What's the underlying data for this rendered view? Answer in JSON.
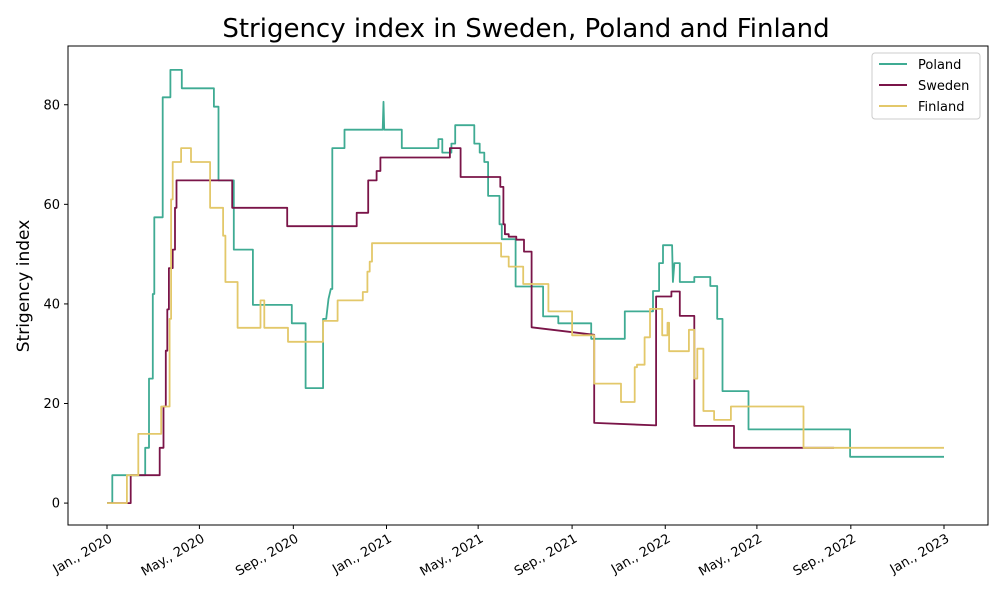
{
  "chart_data": {
    "type": "line",
    "title": "Strigency index in Sweden, Poland and Finland",
    "xlabel": "",
    "ylabel": "Strigency index",
    "xlim": [
      "2020-01-01",
      "2023-01-01"
    ],
    "ylim": [
      -4.4,
      91.8
    ],
    "x_ticks": [
      "2020-01-01",
      "2020-05-01",
      "2020-09-01",
      "2021-01-01",
      "2021-05-01",
      "2021-09-01",
      "2022-01-01",
      "2022-05-01",
      "2022-09-01",
      "2023-01-01"
    ],
    "x_tick_labels": [
      "Jan., 2020",
      "May., 2020",
      "Sep., 2020",
      "Jan., 2021",
      "May., 2021",
      "Sep., 2021",
      "Jan., 2022",
      "May., 2022",
      "Sep., 2022",
      "Jan., 2023"
    ],
    "y_ticks": [
      0,
      20,
      40,
      60,
      80
    ],
    "y_tick_labels": [
      "0",
      "20",
      "40",
      "60",
      "80"
    ],
    "grid": false,
    "legend_position": "top-right",
    "series": [
      {
        "name": "Poland",
        "color": "#3fab93",
        "points": [
          [
            "2020-01-01",
            0
          ],
          [
            "2020-01-08",
            0
          ],
          [
            "2020-01-08",
            5.6
          ],
          [
            "2020-02-20",
            5.6
          ],
          [
            "2020-02-20",
            11.1
          ],
          [
            "2020-02-25",
            11.1
          ],
          [
            "2020-02-25",
            25
          ],
          [
            "2020-03-01",
            25
          ],
          [
            "2020-03-01",
            42
          ],
          [
            "2020-03-03",
            42
          ],
          [
            "2020-03-03",
            57.4
          ],
          [
            "2020-03-14",
            57.4
          ],
          [
            "2020-03-14",
            81.5
          ],
          [
            "2020-03-24",
            81.5
          ],
          [
            "2020-03-24",
            87
          ],
          [
            "2020-04-08",
            87
          ],
          [
            "2020-04-08",
            83.3
          ],
          [
            "2020-05-20",
            83.3
          ],
          [
            "2020-05-20",
            79.6
          ],
          [
            "2020-05-26",
            79.6
          ],
          [
            "2020-05-26",
            64.8
          ],
          [
            "2020-06-15",
            64.8
          ],
          [
            "2020-06-15",
            50.9
          ],
          [
            "2020-07-10",
            50.9
          ],
          [
            "2020-07-10",
            39.8
          ],
          [
            "2020-08-30",
            39.8
          ],
          [
            "2020-08-30",
            36.1
          ],
          [
            "2020-09-17",
            36.1
          ],
          [
            "2020-09-17",
            23.1
          ],
          [
            "2020-10-10",
            23.1
          ],
          [
            "2020-10-10",
            37
          ],
          [
            "2020-10-14",
            37
          ],
          [
            "2020-10-17",
            41
          ],
          [
            "2020-10-20",
            43
          ],
          [
            "2020-10-22",
            43
          ],
          [
            "2020-10-22",
            71.3
          ],
          [
            "2020-11-07",
            71.3
          ],
          [
            "2020-11-07",
            75
          ],
          [
            "2020-12-27",
            75
          ],
          [
            "2020-12-28",
            80.6
          ],
          [
            "2020-12-29",
            75
          ],
          [
            "2021-01-21",
            75
          ],
          [
            "2021-01-21",
            71.3
          ],
          [
            "2021-03-10",
            71.3
          ],
          [
            "2021-03-10",
            73.1
          ],
          [
            "2021-03-15",
            73.1
          ],
          [
            "2021-03-15",
            70.4
          ],
          [
            "2021-03-27",
            70.4
          ],
          [
            "2021-03-27",
            72.2
          ],
          [
            "2021-04-01",
            72.2
          ],
          [
            "2021-04-01",
            75.9
          ],
          [
            "2021-04-26",
            75.9
          ],
          [
            "2021-04-26",
            72.2
          ],
          [
            "2021-05-03",
            72.2
          ],
          [
            "2021-05-03",
            70.4
          ],
          [
            "2021-05-09",
            70.4
          ],
          [
            "2021-05-09",
            68.5
          ],
          [
            "2021-05-14",
            68.5
          ],
          [
            "2021-05-14",
            61.7
          ],
          [
            "2021-05-29",
            61.7
          ],
          [
            "2021-05-29",
            56
          ],
          [
            "2021-06-01",
            56
          ],
          [
            "2021-06-01",
            53
          ],
          [
            "2021-06-19",
            53
          ],
          [
            "2021-06-19",
            43.5
          ],
          [
            "2021-07-25",
            43.5
          ],
          [
            "2021-07-25",
            37.5
          ],
          [
            "2021-08-14",
            37.5
          ],
          [
            "2021-08-14",
            36.1
          ],
          [
            "2021-09-26",
            36.1
          ],
          [
            "2021-09-26",
            33
          ],
          [
            "2021-11-09",
            33
          ],
          [
            "2021-11-09",
            38.5
          ],
          [
            "2021-12-16",
            38.5
          ],
          [
            "2021-12-16",
            42.6
          ],
          [
            "2021-12-24",
            42.6
          ],
          [
            "2021-12-24",
            48.2
          ],
          [
            "2021-12-29",
            48.2
          ],
          [
            "2021-12-29",
            51.8
          ],
          [
            "2022-01-10",
            51.8
          ],
          [
            "2022-01-11",
            44.4
          ],
          [
            "2022-01-13",
            48.2
          ],
          [
            "2022-01-20",
            48.2
          ],
          [
            "2022-01-20",
            44.4
          ],
          [
            "2022-02-08",
            44.4
          ],
          [
            "2022-02-08",
            45.4
          ],
          [
            "2022-03-01",
            45.4
          ],
          [
            "2022-03-01",
            43.6
          ],
          [
            "2022-03-10",
            43.6
          ],
          [
            "2022-03-10",
            37
          ],
          [
            "2022-03-17",
            37
          ],
          [
            "2022-03-17",
            22.5
          ],
          [
            "2022-04-20",
            22.5
          ],
          [
            "2022-04-20",
            14.8
          ],
          [
            "2022-08-31",
            14.8
          ],
          [
            "2022-08-31",
            9.3
          ],
          [
            "2023-01-01",
            9.3
          ]
        ]
      },
      {
        "name": "Sweden",
        "color": "#7a1448",
        "points": [
          [
            "2020-01-01",
            0
          ],
          [
            "2020-02-01",
            0
          ],
          [
            "2020-02-01",
            5.6
          ],
          [
            "2020-03-10",
            5.6
          ],
          [
            "2020-03-10",
            11.1
          ],
          [
            "2020-03-15",
            11.1
          ],
          [
            "2020-03-15",
            19.4
          ],
          [
            "2020-03-18",
            19.4
          ],
          [
            "2020-03-18",
            30.6
          ],
          [
            "2020-03-20",
            30.6
          ],
          [
            "2020-03-20",
            38.9
          ],
          [
            "2020-03-22",
            38.9
          ],
          [
            "2020-03-22",
            47.2
          ],
          [
            "2020-03-27",
            47.2
          ],
          [
            "2020-03-27",
            50.9
          ],
          [
            "2020-03-30",
            50.9
          ],
          [
            "2020-03-30",
            59.3
          ],
          [
            "2020-04-01",
            59.3
          ],
          [
            "2020-04-01",
            64.8
          ],
          [
            "2020-06-13",
            64.8
          ],
          [
            "2020-06-13",
            59.3
          ],
          [
            "2020-08-24",
            59.3
          ],
          [
            "2020-08-24",
            55.6
          ],
          [
            "2020-11-23",
            55.6
          ],
          [
            "2020-11-23",
            58.3
          ],
          [
            "2020-12-08",
            58.3
          ],
          [
            "2020-12-08",
            64.8
          ],
          [
            "2020-12-19",
            64.8
          ],
          [
            "2020-12-19",
            66.7
          ],
          [
            "2020-12-24",
            66.7
          ],
          [
            "2020-12-24",
            69.4
          ],
          [
            "2021-03-25",
            69.4
          ],
          [
            "2021-03-25",
            71.3
          ],
          [
            "2021-04-08",
            71.3
          ],
          [
            "2021-04-08",
            65.5
          ],
          [
            "2021-05-30",
            65.5
          ],
          [
            "2021-05-30",
            63.5
          ],
          [
            "2021-06-03",
            63.5
          ],
          [
            "2021-06-03",
            56
          ],
          [
            "2021-06-05",
            56
          ],
          [
            "2021-06-05",
            54
          ],
          [
            "2021-06-10",
            54
          ],
          [
            "2021-06-10",
            53.5
          ],
          [
            "2021-06-20",
            53.5
          ],
          [
            "2021-06-20",
            52.9
          ],
          [
            "2021-06-30",
            52.9
          ],
          [
            "2021-06-30",
            50.5
          ],
          [
            "2021-07-10",
            50.5
          ],
          [
            "2021-07-10",
            35.3
          ],
          [
            "2021-09-30",
            33.8
          ],
          [
            "2021-09-30",
            16.1
          ],
          [
            "2021-12-20",
            15.6
          ],
          [
            "2021-12-20",
            41.5
          ],
          [
            "2022-01-09",
            41.5
          ],
          [
            "2022-01-09",
            42.5
          ],
          [
            "2022-01-20",
            42.5
          ],
          [
            "2022-01-20",
            37.6
          ],
          [
            "2022-02-08",
            37.6
          ],
          [
            "2022-02-08",
            15.5
          ],
          [
            "2022-04-01",
            15.5
          ],
          [
            "2022-04-01",
            11.1
          ],
          [
            "2022-08-10",
            11.1
          ]
        ]
      },
      {
        "name": "Finland",
        "color": "#e3c86a",
        "points": [
          [
            "2020-01-01",
            0
          ],
          [
            "2020-01-27",
            0
          ],
          [
            "2020-01-27",
            5.6
          ],
          [
            "2020-02-11",
            5.6
          ],
          [
            "2020-02-11",
            13.9
          ],
          [
            "2020-03-12",
            13.9
          ],
          [
            "2020-03-12",
            19.4
          ],
          [
            "2020-03-23",
            19.4
          ],
          [
            "2020-03-23",
            37
          ],
          [
            "2020-03-25",
            37
          ],
          [
            "2020-03-25",
            61
          ],
          [
            "2020-03-27",
            61
          ],
          [
            "2020-03-27",
            68.5
          ],
          [
            "2020-04-07",
            68.5
          ],
          [
            "2020-04-07",
            71.3
          ],
          [
            "2020-04-20",
            71.3
          ],
          [
            "2020-04-20",
            68.5
          ],
          [
            "2020-05-15",
            68.5
          ],
          [
            "2020-05-15",
            59.3
          ],
          [
            "2020-06-01",
            59.3
          ],
          [
            "2020-06-01",
            53.7
          ],
          [
            "2020-06-04",
            53.7
          ],
          [
            "2020-06-04",
            44.4
          ],
          [
            "2020-06-20",
            44.4
          ],
          [
            "2020-06-20",
            35.2
          ],
          [
            "2020-07-20",
            35.2
          ],
          [
            "2020-07-20",
            40.7
          ],
          [
            "2020-07-25",
            40.7
          ],
          [
            "2020-07-25",
            35.2
          ],
          [
            "2020-08-25",
            35.2
          ],
          [
            "2020-08-25",
            32.4
          ],
          [
            "2020-10-10",
            32.4
          ],
          [
            "2020-10-10",
            36.6
          ],
          [
            "2020-10-29",
            36.6
          ],
          [
            "2020-10-29",
            40.7
          ],
          [
            "2020-12-01",
            40.7
          ],
          [
            "2020-12-01",
            42.4
          ],
          [
            "2020-12-07",
            42.4
          ],
          [
            "2020-12-07",
            46.5
          ],
          [
            "2020-12-10",
            46.5
          ],
          [
            "2020-12-10",
            48.5
          ],
          [
            "2020-12-13",
            48.5
          ],
          [
            "2020-12-13",
            52.2
          ],
          [
            "2021-05-31",
            52.2
          ],
          [
            "2021-05-31",
            49.5
          ],
          [
            "2021-06-10",
            49.5
          ],
          [
            "2021-06-10",
            47.5
          ],
          [
            "2021-06-29",
            47.5
          ],
          [
            "2021-06-29",
            44
          ],
          [
            "2021-08-01",
            44
          ],
          [
            "2021-08-01",
            38.5
          ],
          [
            "2021-09-01",
            38.5
          ],
          [
            "2021-09-01",
            33.7
          ],
          [
            "2021-09-30",
            33.7
          ],
          [
            "2021-09-30",
            24
          ],
          [
            "2021-11-04",
            24
          ],
          [
            "2021-11-04",
            20.3
          ],
          [
            "2021-11-22",
            20.3
          ],
          [
            "2021-11-22",
            27.3
          ],
          [
            "2021-11-25",
            27.3
          ],
          [
            "2021-11-25",
            27.8
          ],
          [
            "2021-12-05",
            27.8
          ],
          [
            "2021-12-05",
            33.3
          ],
          [
            "2021-12-12",
            33.3
          ],
          [
            "2021-12-12",
            39
          ],
          [
            "2021-12-28",
            39
          ],
          [
            "2021-12-28",
            33.7
          ],
          [
            "2022-01-04",
            33.7
          ],
          [
            "2022-01-04",
            36.2
          ],
          [
            "2022-01-06",
            36.2
          ],
          [
            "2022-01-06",
            30.5
          ],
          [
            "2022-02-01",
            30.5
          ],
          [
            "2022-02-01",
            34.8
          ],
          [
            "2022-02-08",
            34.8
          ],
          [
            "2022-02-08",
            25
          ],
          [
            "2022-02-12",
            25
          ],
          [
            "2022-02-12",
            31
          ],
          [
            "2022-02-20",
            31
          ],
          [
            "2022-02-20",
            18.5
          ],
          [
            "2022-03-06",
            18.5
          ],
          [
            "2022-03-06",
            16.7
          ],
          [
            "2022-03-28",
            16.7
          ],
          [
            "2022-03-28",
            19.4
          ],
          [
            "2022-07-01",
            19.4
          ],
          [
            "2022-07-01",
            11.1
          ],
          [
            "2023-01-01",
            11.1
          ]
        ]
      }
    ]
  }
}
